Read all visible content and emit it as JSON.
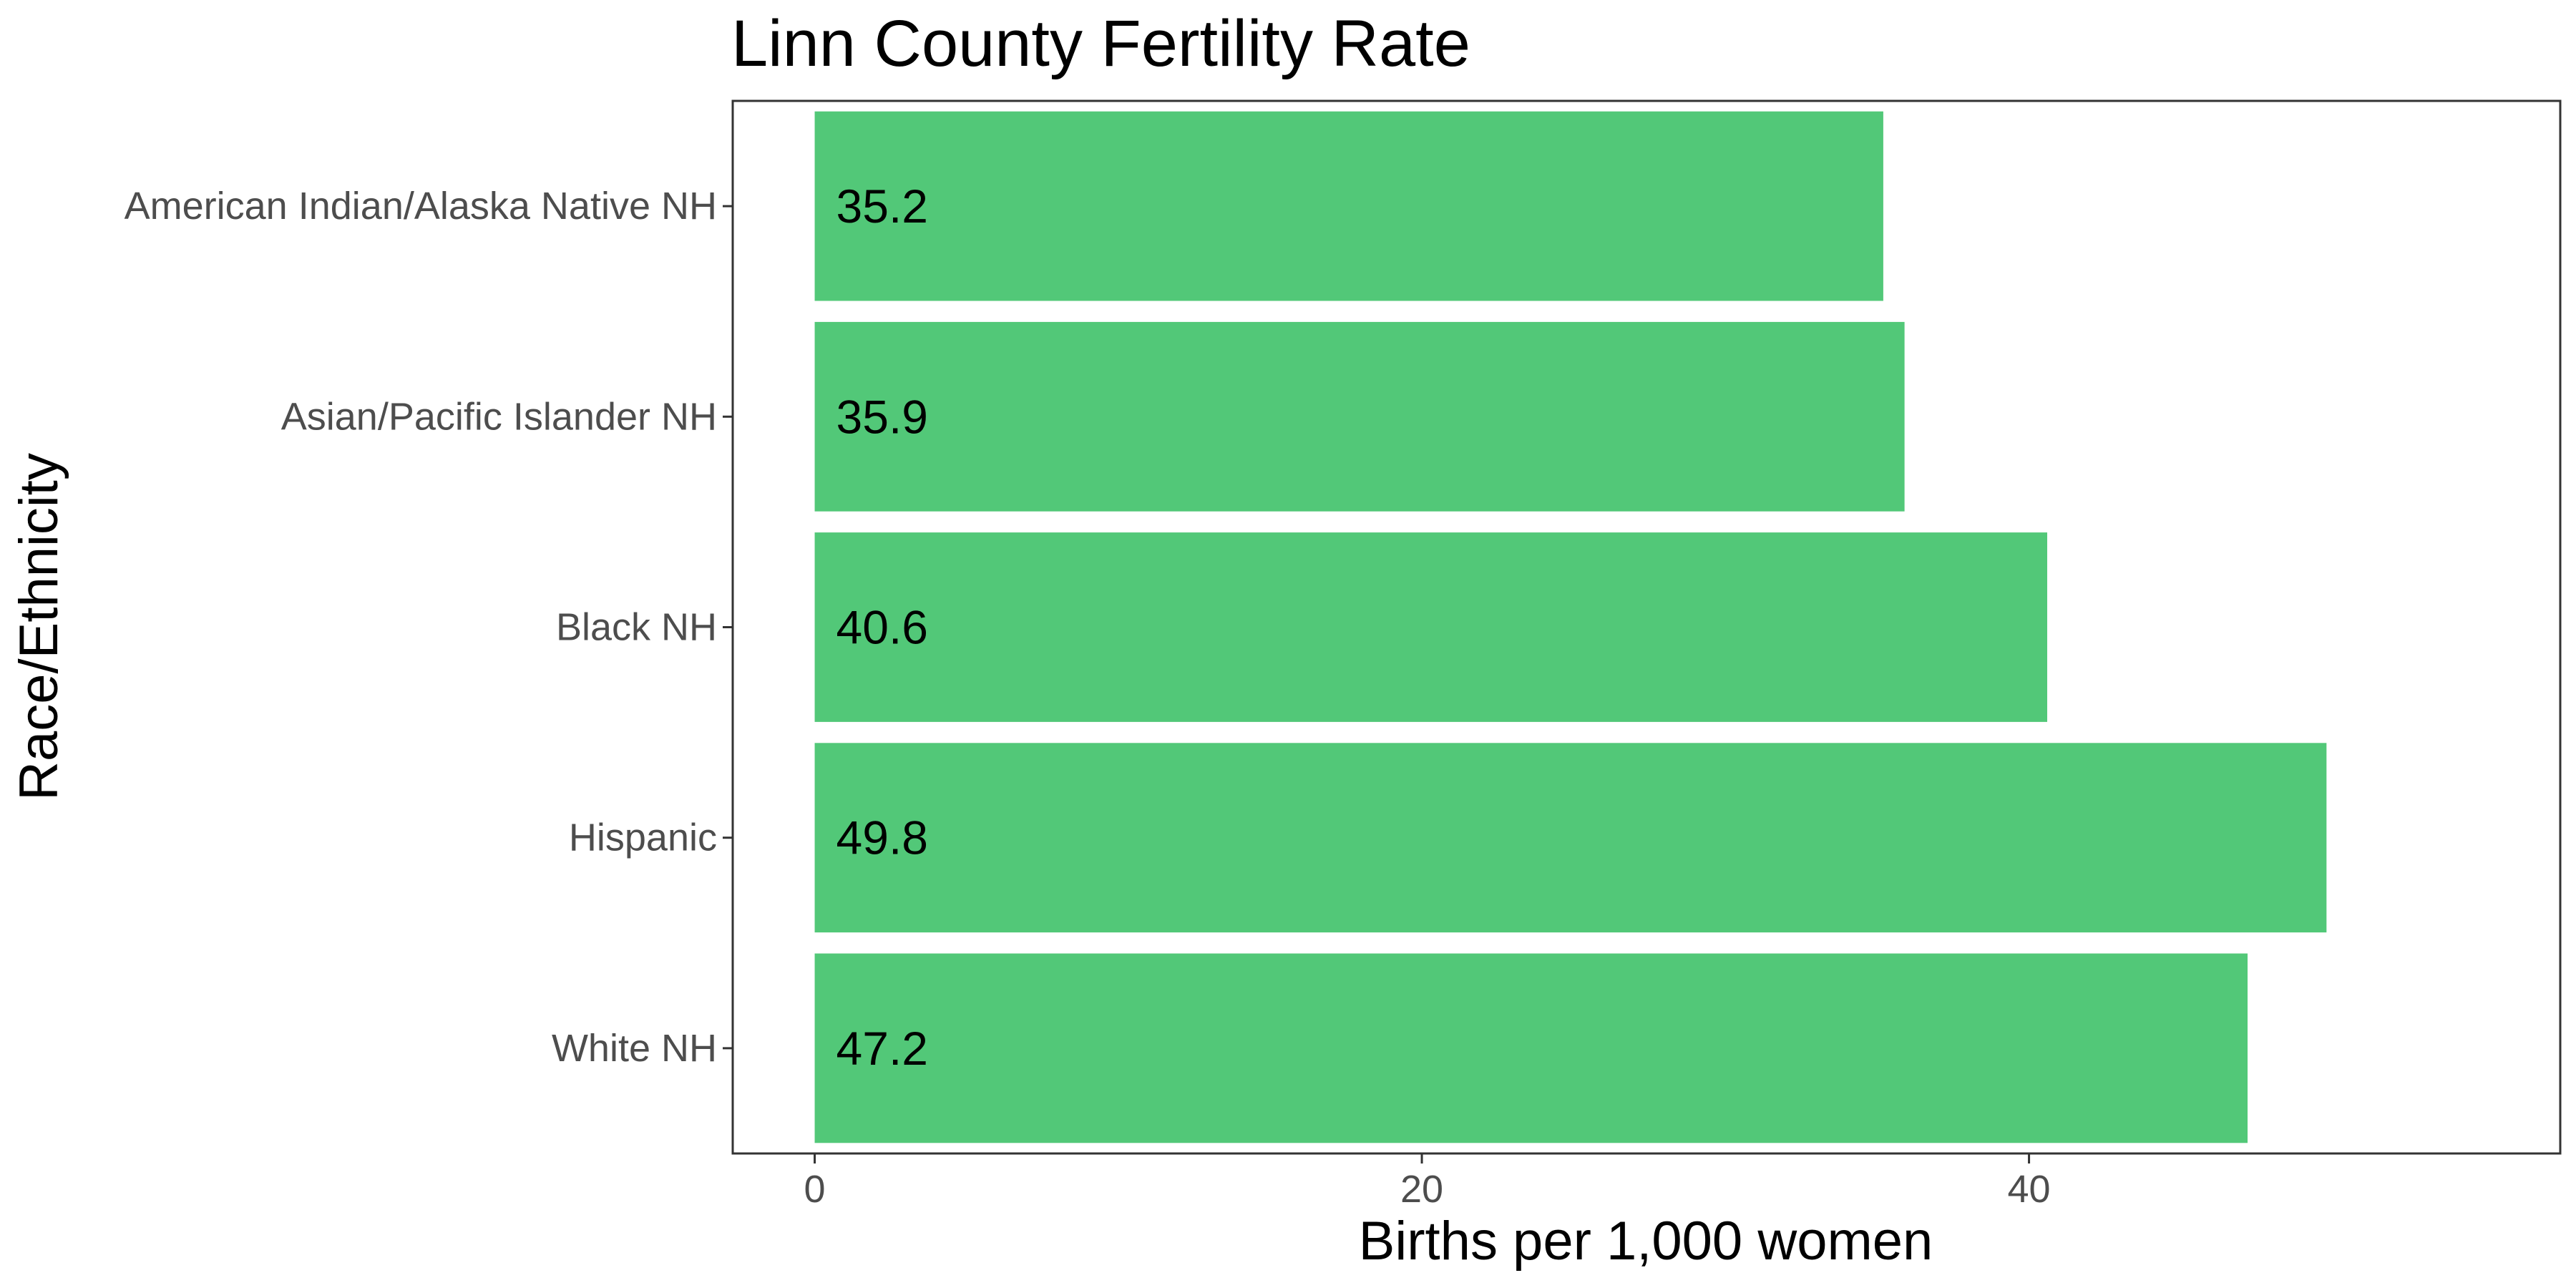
{
  "chart_data": {
    "type": "bar",
    "orientation": "horizontal",
    "title": "Linn County Fertility Rate",
    "xlabel": "Births per 1,000 women",
    "ylabel": "Race/Ethnicity",
    "categories": [
      "American Indian/Alaska Native NH",
      "Asian/Pacific Islander NH",
      "Black NH",
      "Hispanic",
      "White NH"
    ],
    "values": [
      35.2,
      35.9,
      40.6,
      49.8,
      47.2
    ],
    "value_labels": [
      "35.2",
      "35.9",
      "40.6",
      "49.8",
      "47.2"
    ],
    "xlim": [
      -2.7,
      57.5
    ],
    "xticks": [
      0,
      20,
      40
    ],
    "xtick_labels": [
      "0",
      "20",
      "40"
    ],
    "grid": false,
    "legend": "none",
    "bar_color": "#52c878"
  }
}
